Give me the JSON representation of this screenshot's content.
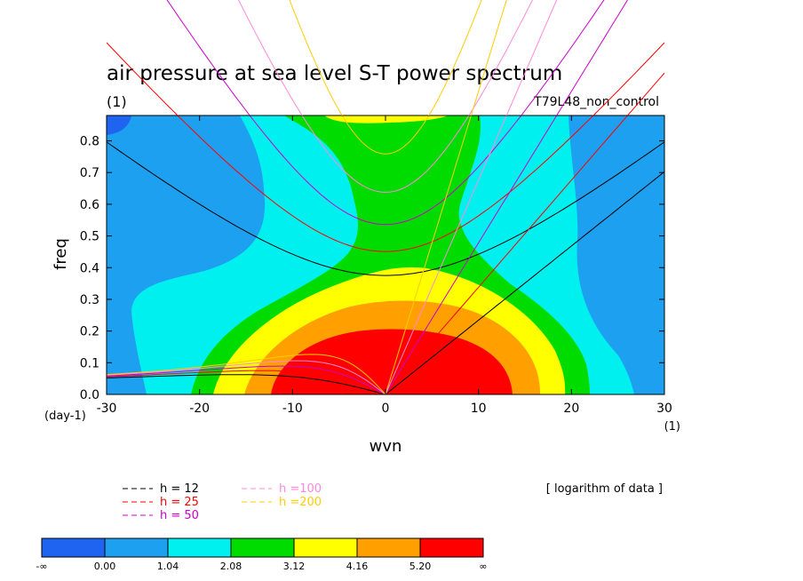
{
  "chart_data": {
    "type": "heatmap",
    "title": "air pressure at sea level S-T power spectrum",
    "units_label": "(1)",
    "experiment": "T79L48_non_control",
    "xlabel": "wvn",
    "ylabel": "freq",
    "x_unit_label": "(1)",
    "y_unit_label": "(day-1)",
    "xlim": [
      -30,
      30
    ],
    "ylim": [
      0,
      0.88
    ],
    "x_ticks": [
      -30,
      -20,
      -10,
      0,
      10,
      20,
      30
    ],
    "y_ticks": [
      0.0,
      0.1,
      0.2,
      0.3,
      0.4,
      0.5,
      0.6,
      0.7,
      0.8
    ],
    "note": "[ logarithm of data ]",
    "colorbar": {
      "labels": [
        "-∞",
        "0.00",
        "1.04",
        "2.08",
        "3.12",
        "4.16",
        "5.20",
        "∞"
      ],
      "colors": [
        "#1e64f0",
        "#1ea0f0",
        "#00f0f0",
        "#00dc00",
        "#ffff00",
        "#ffa000",
        "#ff0000"
      ]
    },
    "dispersion_legend": [
      {
        "label": "h = 12",
        "color": "#000000"
      },
      {
        "label": "h = 25",
        "color": "#ff0000"
      },
      {
        "label": "h = 50",
        "color": "#cc00cc"
      },
      {
        "label": "h =100",
        "color": "#ff88dd"
      },
      {
        "label": "h =200",
        "color": "#ffcc00"
      }
    ],
    "equivalent_depths": [
      12,
      25,
      50,
      100,
      200
    ]
  }
}
